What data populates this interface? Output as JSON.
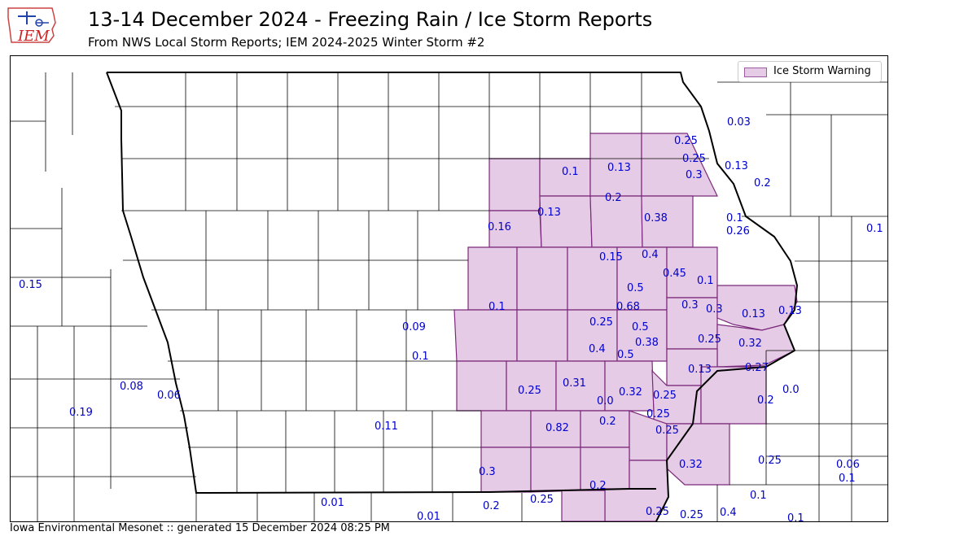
{
  "header": {
    "title": "13-14 December 2024 - Freezing Rain / Ice Storm Reports",
    "subtitle": "From NWS Local Storm Reports; IEM 2024-2025 Winter Storm #2",
    "logo_text": "IEM"
  },
  "legend": {
    "label": "Ice Storm Warning",
    "color": "#e6cbe6"
  },
  "footer": {
    "text": "Iowa Environmental Mesonet :: generated 15 December 2024 08:25 PM"
  },
  "reports": [
    {
      "v": "0.03"
    },
    {
      "v": "0.25"
    },
    {
      "v": "0.25"
    },
    {
      "v": "0.1"
    },
    {
      "v": "0.13"
    },
    {
      "v": "0.3"
    },
    {
      "v": "0.13"
    },
    {
      "v": "0.2"
    },
    {
      "v": "0.2"
    },
    {
      "v": "0.16"
    },
    {
      "v": "0.13"
    },
    {
      "v": "0.38"
    },
    {
      "v": "0.1"
    },
    {
      "v": "0.26"
    },
    {
      "v": "0.1"
    },
    {
      "v": "0.15"
    },
    {
      "v": "0.15"
    },
    {
      "v": "0.4"
    },
    {
      "v": "0.45"
    },
    {
      "v": "0.1"
    },
    {
      "v": "0.5"
    },
    {
      "v": "0.1"
    },
    {
      "v": "0.68"
    },
    {
      "v": "0.3"
    },
    {
      "v": "0.3"
    },
    {
      "v": "0.13"
    },
    {
      "v": "0.13"
    },
    {
      "v": "0.09"
    },
    {
      "v": "0.25"
    },
    {
      "v": "0.5"
    },
    {
      "v": "0.38"
    },
    {
      "v": "0.25"
    },
    {
      "v": "0.32"
    },
    {
      "v": "0.1"
    },
    {
      "v": "0.4"
    },
    {
      "v": "0.5"
    },
    {
      "v": "0.27"
    },
    {
      "v": "0.13"
    },
    {
      "v": "0.31"
    },
    {
      "v": "0.08"
    },
    {
      "v": "0.25"
    },
    {
      "v": "0.32"
    },
    {
      "v": "0.0"
    },
    {
      "v": "0.06"
    },
    {
      "v": "0.25"
    },
    {
      "v": "0.0"
    },
    {
      "v": "0.2"
    },
    {
      "v": "0.19"
    },
    {
      "v": "0.25"
    },
    {
      "v": "0.11"
    },
    {
      "v": "0.82"
    },
    {
      "v": "0.2"
    },
    {
      "v": "0.25"
    },
    {
      "v": "0.25"
    },
    {
      "v": "0.06"
    },
    {
      "v": "0.32"
    },
    {
      "v": "0.3"
    },
    {
      "v": "0.1"
    },
    {
      "v": "0.2"
    },
    {
      "v": "0.1"
    },
    {
      "v": "0.01"
    },
    {
      "v": "0.2"
    },
    {
      "v": "0.25"
    },
    {
      "v": "0.25"
    },
    {
      "v": "0.25"
    },
    {
      "v": "0.4"
    },
    {
      "v": "0.01"
    },
    {
      "v": "0.1"
    }
  ]
}
